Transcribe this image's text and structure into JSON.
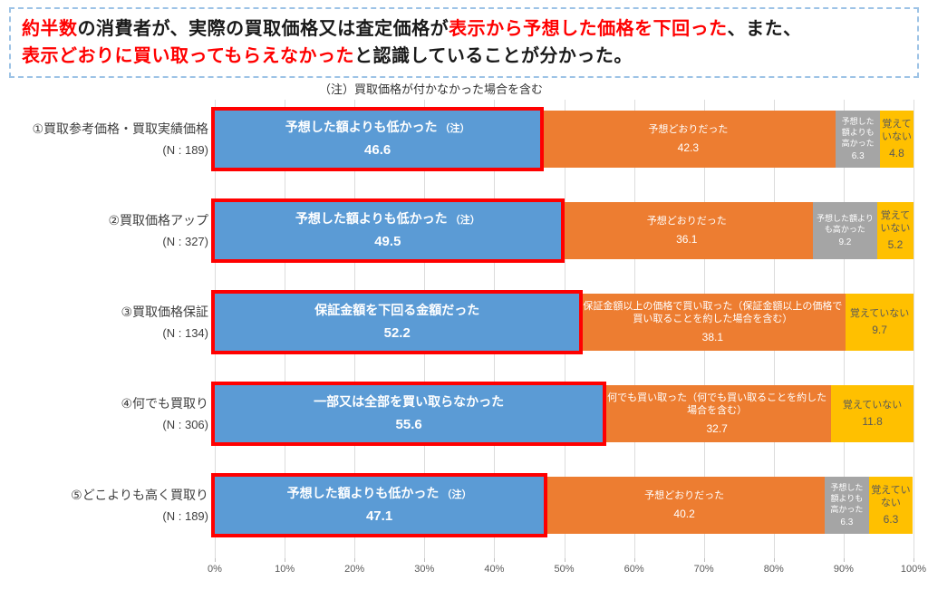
{
  "header": {
    "lines": [
      [
        {
          "text": "約半数",
          "red": true
        },
        {
          "text": "の消費者が、実際の買取価格又は査定価格が",
          "red": false
        },
        {
          "text": "表示から予想した価格を下回った",
          "red": true
        },
        {
          "text": "、また、",
          "red": false
        }
      ],
      [
        {
          "text": "表示どおりに買い取ってもらえなかった",
          "red": true
        },
        {
          "text": "と認識していることが分かった。",
          "red": false
        }
      ]
    ]
  },
  "chart_data": {
    "type": "bar",
    "stacked": true,
    "orientation": "horizontal",
    "unit": "%",
    "note": "（注）買取価格が付かなかった場合を含む",
    "x_axis": {
      "range": [
        0,
        100
      ],
      "ticks": [
        "0%",
        "10%",
        "20%",
        "30%",
        "40%",
        "50%",
        "60%",
        "70%",
        "80%",
        "90%",
        "100%"
      ]
    },
    "colors": {
      "blue": "#5B9BD5",
      "orange": "#ED7D31",
      "gray": "#A5A5A5",
      "yellow": "#FFC000",
      "highlight_border": "#FF0000",
      "grid": "#DCDCDC",
      "red_text": "#FF0000"
    },
    "rows": [
      {
        "category": "①買取参考価格・買取実績価格",
        "n_label": "(N : 189)",
        "segments": [
          {
            "label": "予想した額よりも低かった",
            "note_suffix": "（注）",
            "value": 46.6,
            "color": "blue",
            "highlighted": true
          },
          {
            "label": "予想どおりだった",
            "value": 42.3,
            "color": "orange",
            "highlighted": false
          },
          {
            "label": "予想した額よりも高かった",
            "value": 6.3,
            "color": "gray",
            "highlighted": false
          },
          {
            "label": "覚えていない",
            "value": 4.8,
            "color": "yellow",
            "highlighted": false
          }
        ]
      },
      {
        "category": "②買取価格アップ",
        "n_label": "(N : 327)",
        "segments": [
          {
            "label": "予想した額よりも低かった",
            "note_suffix": "（注）",
            "value": 49.5,
            "color": "blue",
            "highlighted": true
          },
          {
            "label": "予想どおりだった",
            "value": 36.1,
            "color": "orange",
            "highlighted": false
          },
          {
            "label": "予想した額よりも高かった",
            "value": 9.2,
            "color": "gray",
            "highlighted": false
          },
          {
            "label": "覚えていない",
            "value": 5.2,
            "color": "yellow",
            "highlighted": false
          }
        ]
      },
      {
        "category": "③買取価格保証",
        "n_label": "(N : 134)",
        "segments": [
          {
            "label": "保証金額を下回る金額だった",
            "value": 52.2,
            "color": "blue",
            "highlighted": true
          },
          {
            "label": "保証金額以上の価格で買い取った（保証金額以上の価格で買い取ることを約した場合を含む）",
            "value": 38.1,
            "color": "orange",
            "highlighted": false
          },
          {
            "label": "覚えていない",
            "value": 9.7,
            "color": "yellow",
            "highlighted": false
          }
        ]
      },
      {
        "category": "④何でも買取り",
        "n_label": "(N : 306)",
        "segments": [
          {
            "label": "一部又は全部を買い取らなかった",
            "value": 55.6,
            "color": "blue",
            "highlighted": true
          },
          {
            "label": "何でも買い取った（何でも買い取ることを約した場合を含む）",
            "value": 32.7,
            "color": "orange",
            "highlighted": false
          },
          {
            "label": "覚えていない",
            "value": 11.8,
            "color": "yellow",
            "highlighted": false
          }
        ]
      },
      {
        "category": "⑤どこよりも高く買取り",
        "n_label": "(N : 189)",
        "segments": [
          {
            "label": "予想した額よりも低かった",
            "note_suffix": "（注）",
            "value": 47.1,
            "color": "blue",
            "highlighted": true
          },
          {
            "label": "予想どおりだった",
            "value": 40.2,
            "color": "orange",
            "highlighted": false
          },
          {
            "label": "予想した額よりも高かった",
            "value": 6.3,
            "color": "gray",
            "highlighted": false
          },
          {
            "label": "覚えていない",
            "value": 6.3,
            "color": "yellow",
            "highlighted": false
          }
        ]
      }
    ]
  }
}
